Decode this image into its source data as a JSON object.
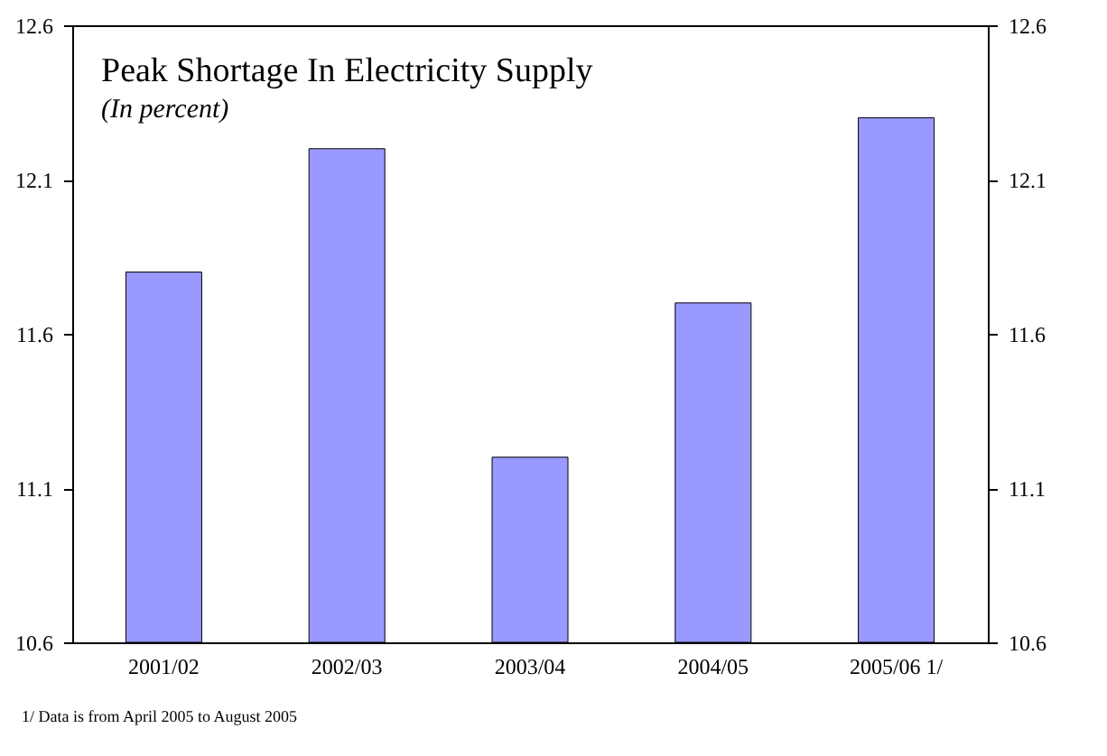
{
  "chart_data": {
    "type": "bar",
    "title": "Peak Shortage In Electricity Supply",
    "subtitle": "(In percent)",
    "categories": [
      "2001/02",
      "2002/03",
      "2003/04",
      "2004/05",
      "2005/06 1/"
    ],
    "values": [
      11.8,
      12.2,
      11.2,
      11.7,
      12.3
    ],
    "color": "#9999ff",
    "ylim": [
      10.6,
      12.6
    ],
    "yticks": [
      10.6,
      11.1,
      11.6,
      12.1,
      12.6
    ],
    "y2lim": [
      10.6,
      12.6
    ],
    "y2ticks": [
      10.6,
      11.1,
      11.6,
      12.1,
      12.6
    ],
    "grid": false,
    "annotations": [
      "1/ Data is from April 2005 to August 2005"
    ]
  }
}
